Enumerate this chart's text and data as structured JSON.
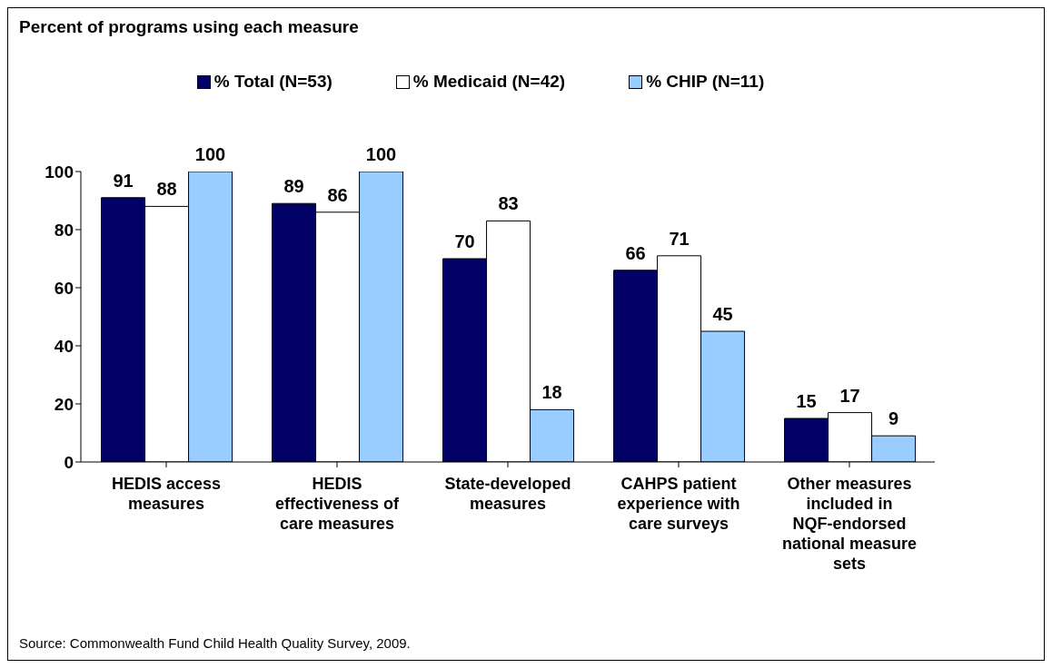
{
  "chart_data": {
    "type": "bar",
    "title": "Percent of programs using each measure",
    "categories": [
      "HEDIS access measures",
      "HEDIS effectiveness of care measures",
      "State-developed measures",
      "CAHPS patient experience with care surveys",
      "Other measures included in NQF-endorsed national measure sets"
    ],
    "series": [
      {
        "name": "% Total (N=53)",
        "color": "#000066",
        "values": [
          91,
          89,
          70,
          66,
          15
        ]
      },
      {
        "name": "% Medicaid (N=42)",
        "color": "#ffffff",
        "values": [
          88,
          86,
          83,
          71,
          17
        ]
      },
      {
        "name": "% CHIP (N=11)",
        "color": "#99ccff",
        "values": [
          100,
          100,
          18,
          45,
          9
        ]
      }
    ],
    "ylim": [
      0,
      100
    ],
    "yticks": [
      0,
      20,
      40,
      60,
      80,
      100
    ],
    "grid": false,
    "legend": "top",
    "data_labels": true,
    "annotations": [
      "Source: Commonwealth Fund Child Health Quality Survey, 2009."
    ]
  }
}
